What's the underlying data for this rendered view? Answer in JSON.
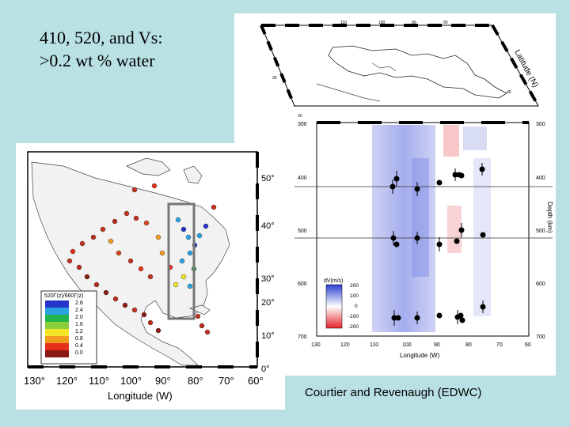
{
  "slide": {
    "title_line1": "410, 520, and Vs:",
    "title_line2": ">0.2 wt % water",
    "credit": "Courtier and Revenaugh (EDWC)"
  },
  "right_figure": {
    "map_lon_labels": [
      "130",
      "120",
      "110",
      "100",
      "90",
      "80",
      "70"
    ],
    "map_lat_labels": [
      "50",
      "40",
      "30",
      "20"
    ],
    "map_axis_label": "Latitude (N)",
    "depth_ticks": [
      "300",
      "400",
      "500",
      "600",
      "700"
    ],
    "lon_ticks": [
      "130",
      "120",
      "110",
      "100",
      "90",
      "80",
      "70",
      "60"
    ],
    "x_label": "Longitude (W)",
    "y_label_right": "Depth (km)",
    "colorbar_title": "dV(m/s)",
    "colorbar_ticks": [
      "200",
      "100",
      "0",
      "-100",
      "-200"
    ],
    "colorbar_colors": {
      "positive": "#2b3fd0",
      "zero": "#ffffff",
      "negative": "#e3262b"
    },
    "reflectors": [
      {
        "name": "410 km",
        "depth_km": 410
      },
      {
        "name": "520 km",
        "depth_km": 515
      }
    ]
  },
  "left_figure": {
    "lat_labels": [
      "50°",
      "40°",
      "30°",
      "20°",
      "10°",
      "0°"
    ],
    "lon_labels": [
      "130°",
      "120°",
      "110°",
      "100°",
      "90°",
      "80°",
      "70°",
      "60°"
    ],
    "x_label": "Longitude (W)",
    "legend_title": "520Γ(z)/660Γ(z)",
    "legend_items": [
      {
        "value": "2.8",
        "color": "#2436c9"
      },
      {
        "value": "2.4",
        "color": "#2aa3e0"
      },
      {
        "value": "2.0",
        "color": "#22b34a"
      },
      {
        "value": "1.6",
        "color": "#8ccf3c"
      },
      {
        "value": "1.2",
        "color": "#f2e526"
      },
      {
        "value": "0.8",
        "color": "#f39b1f"
      },
      {
        "value": "0.4",
        "color": "#e5301e"
      },
      {
        "value": "0.0",
        "color": "#8a1a12"
      }
    ]
  }
}
